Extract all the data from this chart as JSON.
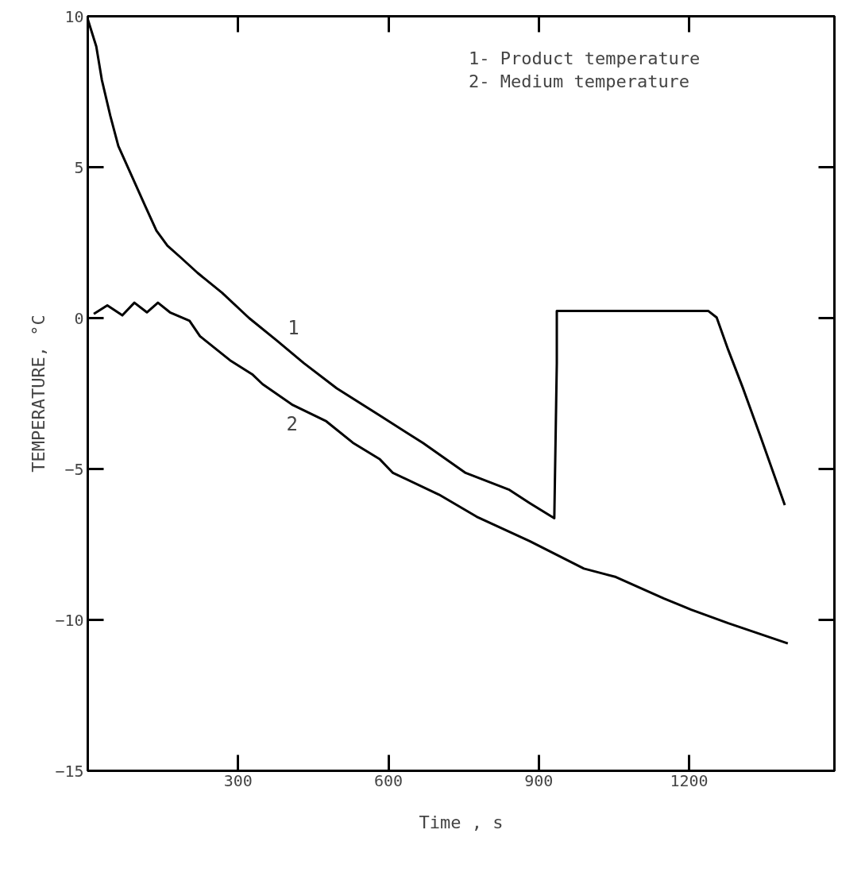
{
  "chart_data": {
    "type": "line",
    "xlabel": "Time , s",
    "ylabel": "TEMPERATURE, °C",
    "xlim": [
      0,
      1490
    ],
    "ylim": [
      -15,
      10
    ],
    "xticks": [
      300,
      600,
      900,
      1200
    ],
    "yticks": [
      -15,
      -10,
      -5,
      0,
      5,
      10
    ],
    "grid": false,
    "marker": "none",
    "line_style": "solid",
    "series": [
      {
        "color": "#000000",
        "x": [
          0,
          17,
          28,
          45,
          61,
          88,
          115,
          137,
          159,
          186,
          219,
          268,
          322,
          377,
          431,
          497,
          583,
          669,
          754,
          840,
          882,
          931,
          936,
          936,
          1238,
          1255,
          1278,
          1307,
          1342,
          1391
        ],
        "values": [
          9.9,
          9.0,
          7.9,
          6.7,
          5.7,
          4.7,
          3.7,
          2.9,
          2.4,
          2.0,
          1.5,
          0.84,
          0,
          -0.74,
          -1.49,
          -2.33,
          -3.23,
          -4.14,
          -5.13,
          -5.68,
          -6.13,
          -6.63,
          -1.5,
          0.24,
          0.24,
          0.02,
          -1.05,
          -2.3,
          -3.9,
          -6.2
        ]
      },
      {
        "color": "#000000",
        "x": [
          12,
          39,
          69,
          93,
          118,
          140,
          164,
          203,
          224,
          284,
          328,
          349,
          409,
          476,
          529,
          583,
          609,
          701,
          776,
          882,
          990,
          1054,
          1150,
          1204,
          1278,
          1397
        ],
        "values": [
          0.14,
          0.42,
          0.09,
          0.51,
          0.19,
          0.51,
          0.19,
          -0.09,
          -0.6,
          -1.4,
          -1.86,
          -2.19,
          -2.88,
          -3.42,
          -4.13,
          -4.68,
          -5.13,
          -5.85,
          -6.58,
          -7.39,
          -8.3,
          -8.58,
          -9.29,
          -9.66,
          -10.11,
          -10.78
        ]
      }
    ],
    "annotations": [
      "1",
      "2",
      "1- Product temperature",
      "2- Medium temperature"
    ]
  }
}
